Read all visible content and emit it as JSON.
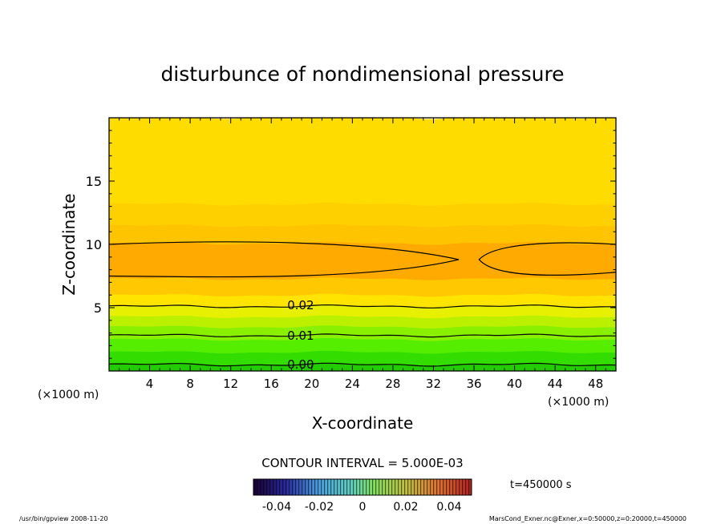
{
  "chart_data": {
    "type": "heatmap",
    "title": "disturbunce of nondimensional pressure",
    "xlabel": "X-coordinate",
    "ylabel": "Z-coordinate",
    "x_unit_left": "(×1000 m)",
    "x_unit_right": "(×1000 m)",
    "xlim": [
      0,
      50
    ],
    "ylim": [
      0,
      20
    ],
    "x_ticks": [
      4,
      8,
      12,
      16,
      20,
      24,
      28,
      32,
      36,
      40,
      44,
      48
    ],
    "y_ticks": [
      5,
      10,
      15
    ],
    "contour_labels": [
      {
        "text": "0.02",
        "x": 17.5,
        "z": 5.2
      },
      {
        "text": "0.01",
        "x": 17.5,
        "z": 2.8
      },
      {
        "text": "0.00",
        "x": 17.5,
        "z": 0.5
      }
    ],
    "bands": [
      {
        "z0": 0.0,
        "z1": 0.5,
        "color": "#22cc00"
      },
      {
        "z0": 0.5,
        "z1": 1.5,
        "color": "#33dd00"
      },
      {
        "z0": 1.5,
        "z1": 2.5,
        "color": "#55ee00"
      },
      {
        "z0": 2.5,
        "z1": 3.5,
        "color": "#88f000"
      },
      {
        "z0": 3.5,
        "z1": 4.3,
        "color": "#bbf000"
      },
      {
        "z0": 4.3,
        "z1": 5.1,
        "color": "#e6f000"
      },
      {
        "z0": 5.1,
        "z1": 6.0,
        "color": "#ffe400"
      },
      {
        "z0": 6.0,
        "z1": 7.3,
        "color": "#ffc800"
      },
      {
        "z0": 7.3,
        "z1": 10.1,
        "color": "#ffaa00"
      },
      {
        "z0": 10.1,
        "z1": 11.5,
        "color": "#ffc400"
      },
      {
        "z0": 11.5,
        "z1": 13.2,
        "color": "#ffd000"
      },
      {
        "z0": 13.2,
        "z1": 20.0,
        "color": "#ffdc00"
      }
    ],
    "contour_interval_label": "CONTOUR INTERVAL = 5.000E-03",
    "colorbar_ticks": [
      "-0.04",
      "-0.02",
      "0",
      "0.02",
      "0.04"
    ],
    "time_label": "t=450000 s",
    "grid": false
  },
  "footer": {
    "left": "/usr/bin/gpview   2008-11-20",
    "right": "MarsCond_Exner.nc@Exner,x=0:50000,z=0:20000,t=450000"
  }
}
